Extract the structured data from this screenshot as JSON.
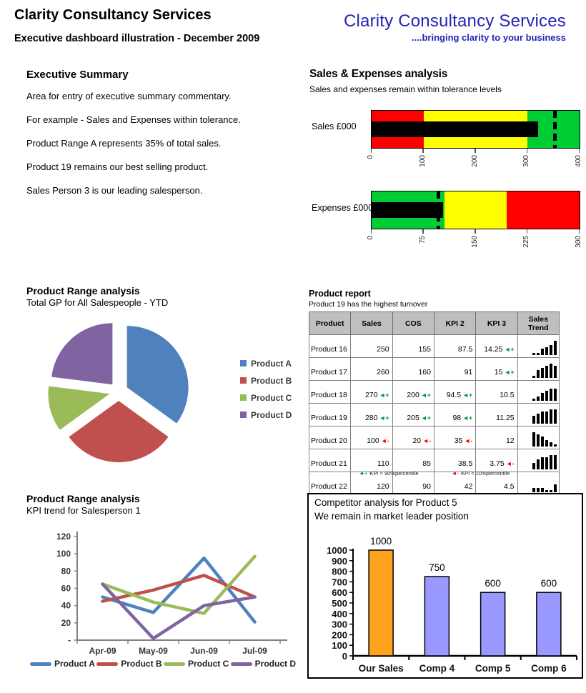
{
  "header": {
    "title": "Clarity Consultancy Services",
    "subtitle": "Executive dashboard illustration - December 2009"
  },
  "logo": {
    "title": "Clarity Consultancy Services",
    "tagline": "....bringing clarity to your business",
    "color": "#2424B6"
  },
  "executive_summary": {
    "heading": "Executive Summary",
    "paragraphs": [
      "Area for entry of executive summary commentary.",
      "For example - Sales and Expenses within tolerance.",
      "Product Range A represents 35% of total sales.",
      "Product 19 remains our best selling product.",
      "Sales Person 3 is our leading salesperson."
    ]
  },
  "sales_expenses": {
    "heading": "Sales & Expenses analysis",
    "subtitle": "Sales and expenses remain within tolerance levels"
  },
  "product_report": {
    "footnote_good": "KPI > 90%percentile",
    "footnote_bad": "KPI < 10%percentile"
  },
  "chart_data": [
    {
      "id": "sales_bullet",
      "type": "bullet",
      "label": "Sales £000",
      "xlim": [
        0,
        400
      ],
      "ticks": [
        0,
        100,
        200,
        300,
        400
      ],
      "bands": [
        {
          "color": "#FF0000",
          "range": [
            0,
            100
          ]
        },
        {
          "color": "#FFFF00",
          "range": [
            100,
            300
          ]
        },
        {
          "color": "#00CC33",
          "range": [
            300,
            400
          ]
        }
      ],
      "measure": 320,
      "target": 352
    },
    {
      "id": "expenses_bullet",
      "type": "bullet",
      "label": "Expenses £000",
      "xlim": [
        0,
        300
      ],
      "ticks": [
        0,
        75,
        150,
        225,
        300
      ],
      "bands": [
        {
          "color": "#00CC33",
          "range": [
            0,
            105
          ]
        },
        {
          "color": "#FFFF00",
          "range": [
            105,
            195
          ]
        },
        {
          "color": "#FF0000",
          "range": [
            195,
            300
          ]
        }
      ],
      "measure": 103,
      "target": 96
    },
    {
      "id": "product_range_pie",
      "type": "pie",
      "title": "Product Range analysis",
      "subtitle": "Total GP for All Salespeople - YTD",
      "labels": [
        "Product A",
        "Product B",
        "Product C",
        "Product D"
      ],
      "values": [
        35,
        30,
        12,
        23
      ],
      "colors": [
        "#4F81BD",
        "#C0504D",
        "#9BBB59",
        "#8064A2"
      ],
      "legend_position": "right",
      "exploded": true
    },
    {
      "id": "product_report_table",
      "type": "table",
      "title": "Product report",
      "subtitle": "Product 19 has the highest turnover",
      "columns": [
        "Product",
        "Sales",
        "COS",
        "KPI 2",
        "KPI 3",
        "Sales Trend"
      ],
      "flag_colors": {
        "up": "#009B3C",
        "down": "#FF0000"
      },
      "rows": [
        {
          "cells": [
            {
              "v": "Product 16"
            },
            {
              "v": "250"
            },
            {
              "v": "155"
            },
            {
              "v": "87.5"
            },
            {
              "v": "14.25",
              "flag": "up"
            }
          ],
          "trend": [
            1,
            1,
            3,
            4,
            5,
            7
          ]
        },
        {
          "cells": [
            {
              "v": "Product 17"
            },
            {
              "v": "260"
            },
            {
              "v": "160"
            },
            {
              "v": "91"
            },
            {
              "v": "15",
              "flag": "up"
            }
          ],
          "trend": [
            1,
            4,
            5,
            6,
            7,
            6
          ]
        },
        {
          "cells": [
            {
              "v": "Product 18"
            },
            {
              "v": "270",
              "flag": "up"
            },
            {
              "v": "200",
              "flag": "up"
            },
            {
              "v": "94.5",
              "flag": "up"
            },
            {
              "v": "10.5"
            }
          ],
          "trend": [
            1,
            2,
            4,
            5,
            6,
            6
          ]
        },
        {
          "cells": [
            {
              "v": "Product 19"
            },
            {
              "v": "280",
              "flag": "up"
            },
            {
              "v": "205",
              "flag": "up"
            },
            {
              "v": "98",
              "flag": "up"
            },
            {
              "v": "11.25"
            }
          ],
          "trend": [
            4,
            5,
            6,
            6,
            7,
            7
          ]
        },
        {
          "cells": [
            {
              "v": "Product 20"
            },
            {
              "v": "100",
              "flag": "down"
            },
            {
              "v": "20",
              "flag": "down"
            },
            {
              "v": "35",
              "flag": "down"
            },
            {
              "v": "12"
            }
          ],
          "trend": [
            7,
            6,
            5,
            3,
            2,
            1
          ]
        },
        {
          "cells": [
            {
              "v": "Product 21"
            },
            {
              "v": "110"
            },
            {
              "v": "85"
            },
            {
              "v": "38.5"
            },
            {
              "v": "3.75",
              "flag": "down"
            }
          ],
          "trend": [
            3,
            5,
            6,
            6,
            7,
            7
          ]
        },
        {
          "cells": [
            {
              "v": "Product 22"
            },
            {
              "v": "120"
            },
            {
              "v": "90"
            },
            {
              "v": "42"
            },
            {
              "v": "4.5"
            }
          ],
          "trend": [
            2,
            2,
            2,
            1,
            1,
            4
          ]
        }
      ]
    },
    {
      "id": "kpi_trend_line",
      "type": "line",
      "title": "Product Range analysis",
      "subtitle": "KPI trend for Salesperson 1",
      "x": [
        "Apr-09",
        "May-09",
        "Jun-09",
        "Jul-09"
      ],
      "ylim": [
        0,
        120
      ],
      "y_tick_step": 20,
      "zero_label": "-",
      "legend_position": "bottom",
      "series": [
        {
          "name": "Product A",
          "color": "#4F81BD",
          "values": [
            50,
            32,
            95,
            21
          ]
        },
        {
          "name": "Product B",
          "color": "#C0504D",
          "values": [
            45,
            58,
            75,
            50
          ]
        },
        {
          "name": "Product C",
          "color": "#9BBB59",
          "values": [
            65,
            44,
            31,
            97
          ]
        },
        {
          "name": "Product D",
          "color": "#8064A2",
          "values": [
            65,
            2,
            40,
            50
          ]
        }
      ]
    },
    {
      "id": "competitor_bar",
      "type": "bar",
      "title": "Competitor analysis for Product 5",
      "subtitle": "We remain in market leader position",
      "categories": [
        "Our Sales",
        "Comp 4",
        "Comp 5",
        "Comp 6"
      ],
      "values": [
        1000,
        750,
        600,
        600
      ],
      "bar_colors": [
        "#FFA21E",
        "#9999FF",
        "#9999FF",
        "#9999FF"
      ],
      "ylim": [
        0,
        1000
      ],
      "y_tick_step": 100,
      "data_labels": [
        1000,
        750,
        600,
        600
      ]
    }
  ]
}
